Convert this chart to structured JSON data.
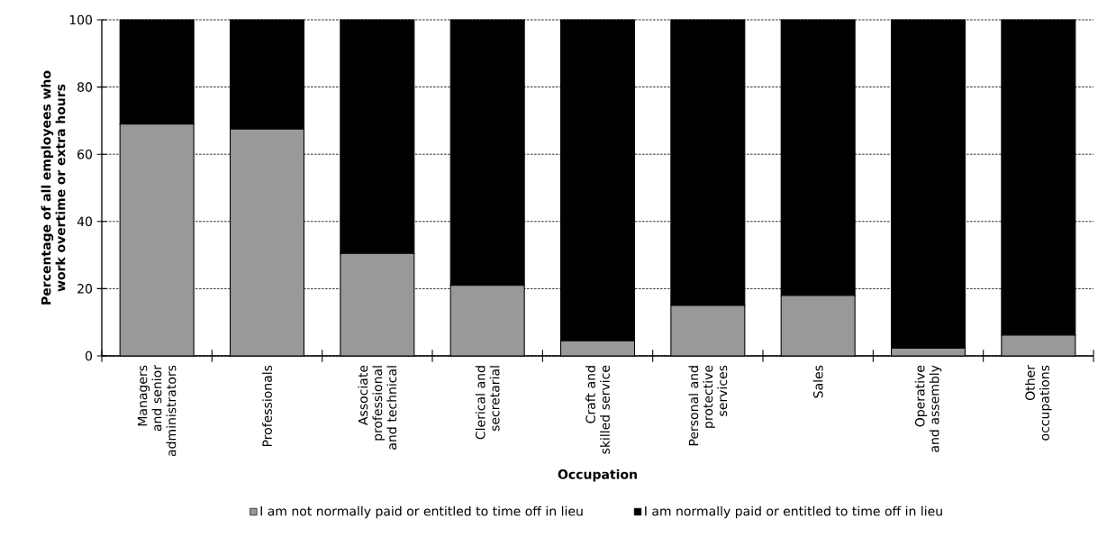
{
  "chart_data": {
    "type": "bar",
    "stacked": true,
    "xlabel": "Occupation",
    "ylabel": "Percentage of all employees who work overtime or extra hours",
    "categories": [
      "Managers and senior administrators",
      "Professionals",
      "Associate professional and technical",
      "Clerical and secretarial",
      "Craft and skilled service",
      "Personal and protective services",
      "Sales",
      "Operative and assembly",
      "Other occupations"
    ],
    "series": [
      {
        "name": "I am not normally paid or entitled to time off in lieu",
        "color": "#999999",
        "values": [
          69,
          67.5,
          30.5,
          21,
          4.5,
          15,
          18,
          2.3,
          6.2
        ]
      },
      {
        "name": "I am normally paid or entitled to time off in lieu",
        "color": "#000000",
        "values": [
          31,
          32.5,
          69.5,
          79,
          95.5,
          85,
          82,
          97.7,
          93.8
        ]
      }
    ],
    "ylim": [
      0,
      100
    ],
    "yticks": [
      0,
      20,
      40,
      60,
      80,
      100
    ],
    "grid": "y",
    "legend": "bottom"
  }
}
